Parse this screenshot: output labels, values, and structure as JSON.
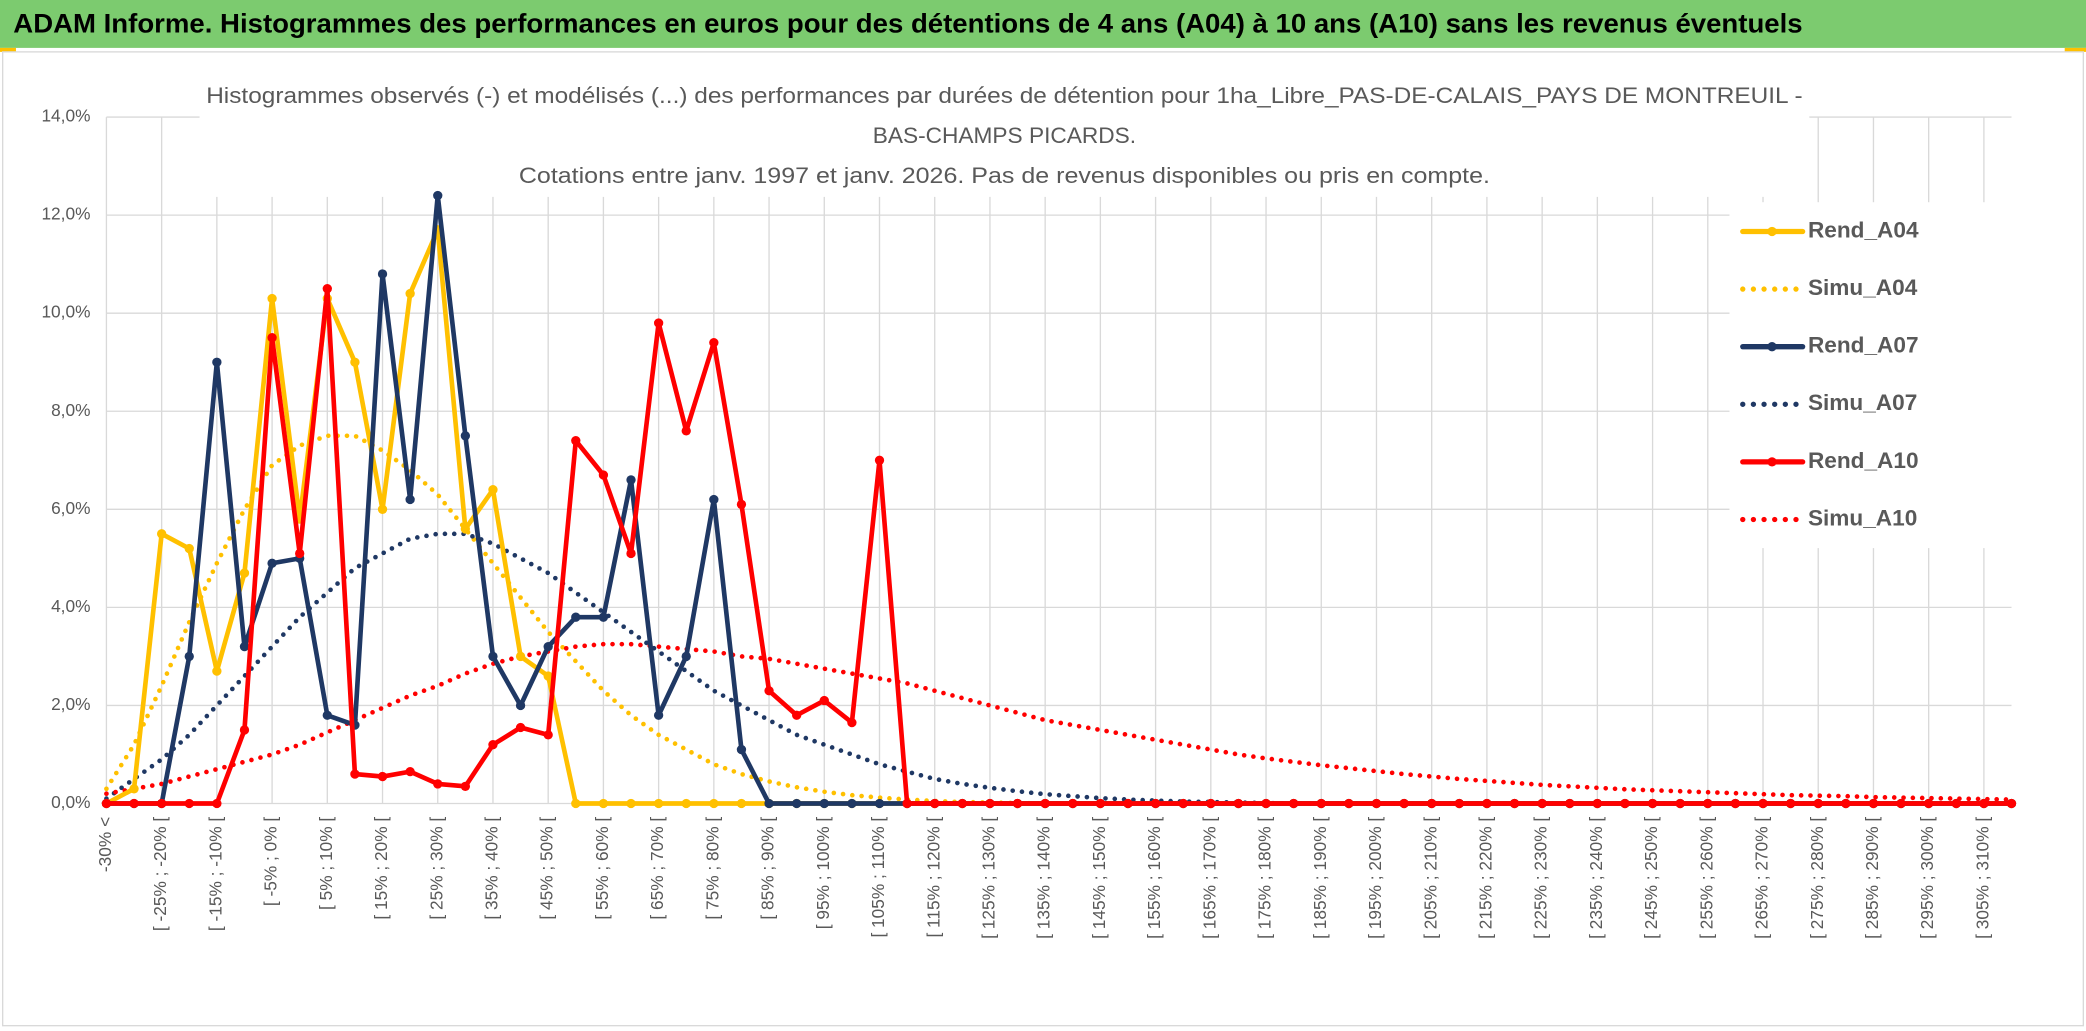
{
  "header": {
    "title": "ADAM Informe. Histogrammes des performances en euros pour des détentions de 4 ans (A04) à 10 ans (A10) sans les revenus éventuels"
  },
  "chart_data": {
    "type": "line",
    "title": [
      "Histogrammes observés (-) et modélisés (...) des performances par durées de détention pour 1ha_Libre_PAS-DE-CALAIS_PAYS DE MONTREUIL -",
      "BAS-CHAMPS PICARDS.",
      "Cotations entre janv. 1997 et janv. 2026. Pas de revenus disponibles ou pris en compte."
    ],
    "categories": [
      "-30% <",
      null,
      "[ -25% ; -20% [",
      null,
      "[ -15% ; -10% [",
      null,
      "[ -5% ; 0% [",
      null,
      "[ 5% ; 10% [",
      null,
      "[ 15% ; 20% [",
      null,
      "[ 25% ; 30% [",
      null,
      "[ 35% ; 40% [",
      null,
      "[ 45% ; 50% [",
      null,
      "[ 55% ; 60% [",
      null,
      "[ 65% ; 70% [",
      null,
      "[ 75% ; 80% [",
      null,
      "[ 85% ; 90% [",
      null,
      "[ 95% ; 100% [",
      null,
      "[ 105% ; 110% [",
      null,
      "[ 115% ; 120% [",
      null,
      "[ 125% ; 130% [",
      null,
      "[ 135% ; 140% [",
      null,
      "[ 145% ; 150% [",
      null,
      "[ 155% ; 160% [",
      null,
      "[ 165% ; 170% [",
      null,
      "[ 175% ; 180% [",
      null,
      "[ 185% ; 190% [",
      null,
      "[ 195% ; 200% [",
      null,
      "[ 205% ; 210% [",
      null,
      "[ 215% ; 220% [",
      null,
      "[ 225% ; 230% [",
      null,
      "[ 235% ; 240% [",
      null,
      "[ 245% ; 250% [",
      null,
      "[ 255% ; 260% [",
      null,
      "[ 265% ; 270% [",
      null,
      "[ 275% ; 280% [",
      null,
      "[ 285% ; 290% [",
      null,
      "[ 295% ; 300% [",
      null,
      "[ 305% ; 310% [",
      null
    ],
    "ylim": [
      0,
      14
    ],
    "yticks": [
      {
        "value": 0,
        "label": "0,0%"
      },
      {
        "value": 2,
        "label": "2,0%"
      },
      {
        "value": 4,
        "label": "4,0%"
      },
      {
        "value": 6,
        "label": "6,0%"
      },
      {
        "value": 8,
        "label": "8,0%"
      },
      {
        "value": 10,
        "label": "10,0%"
      },
      {
        "value": 12,
        "label": "12,0%"
      },
      {
        "value": 14,
        "label": "14,0%"
      }
    ],
    "grid": true,
    "legend": "upper right",
    "series": [
      {
        "name": "Rend_A04",
        "color": "#ffc000",
        "style": "solid",
        "markers": true,
        "values": [
          0,
          0.3,
          5.5,
          5.2,
          2.7,
          4.7,
          10.3,
          5.8,
          10.3,
          9.0,
          6.0,
          10.4,
          11.7,
          5.6,
          6.4,
          3.0,
          2.6,
          0,
          0,
          0,
          0,
          0,
          0,
          0,
          0,
          0,
          0,
          0,
          0,
          0,
          0,
          0,
          0,
          0,
          0,
          0,
          0,
          0,
          0,
          0,
          0,
          0,
          0,
          0,
          0,
          0,
          0,
          0,
          0,
          0,
          0,
          0,
          0,
          0,
          0,
          0,
          0,
          0,
          0,
          0,
          0,
          0,
          0,
          0,
          0,
          0,
          0,
          0,
          0,
          0
        ]
      },
      {
        "name": "Simu_A04",
        "color": "#ffc000",
        "style": "dotted",
        "markers": false,
        "values": [
          0.3,
          1.2,
          2.4,
          3.7,
          4.9,
          6.0,
          6.9,
          7.3,
          7.5,
          7.5,
          7.2,
          6.8,
          6.3,
          5.6,
          4.9,
          4.2,
          3.5,
          2.9,
          2.3,
          1.8,
          1.4,
          1.1,
          0.8,
          0.6,
          0.45,
          0.33,
          0.24,
          0.17,
          0.12,
          0.08,
          0.05,
          0.03,
          0.02,
          0.01,
          0,
          0,
          0,
          0,
          0,
          0,
          0,
          0,
          0,
          0,
          0,
          0,
          0,
          0,
          0,
          0,
          0,
          0,
          0,
          0,
          0,
          0,
          0,
          0,
          0,
          0,
          0,
          0,
          0,
          0,
          0,
          0,
          0,
          0,
          0,
          0
        ]
      },
      {
        "name": "Rend_A07",
        "color": "#1f3864",
        "style": "solid",
        "markers": true,
        "values": [
          0,
          0,
          0,
          3.0,
          9.0,
          3.2,
          4.9,
          5.0,
          1.8,
          1.6,
          10.8,
          6.2,
          12.4,
          7.5,
          3.0,
          2.0,
          3.2,
          3.8,
          3.8,
          6.6,
          1.8,
          3.0,
          6.2,
          1.1,
          0,
          0,
          0,
          0,
          0,
          0,
          0,
          0,
          0,
          0,
          0,
          0,
          0,
          0,
          0,
          0,
          0,
          0,
          0,
          0,
          0,
          0,
          0,
          0,
          0,
          0,
          0,
          0,
          0,
          0,
          0,
          0,
          0,
          0,
          0,
          0,
          0,
          0,
          0,
          0,
          0,
          0,
          0,
          0,
          0,
          0
        ]
      },
      {
        "name": "Simu_A07",
        "color": "#1f3864",
        "style": "dotted",
        "markers": false,
        "values": [
          0.1,
          0.5,
          0.9,
          1.4,
          2.0,
          2.6,
          3.2,
          3.8,
          4.3,
          4.8,
          5.1,
          5.4,
          5.5,
          5.5,
          5.3,
          5.0,
          4.7,
          4.3,
          3.9,
          3.5,
          3.1,
          2.7,
          2.3,
          2.0,
          1.7,
          1.4,
          1.2,
          1.0,
          0.8,
          0.65,
          0.5,
          0.4,
          0.32,
          0.25,
          0.19,
          0.15,
          0.11,
          0.08,
          0.06,
          0.04,
          0.03,
          0.02,
          0.01,
          0,
          0,
          0,
          0,
          0,
          0,
          0,
          0,
          0,
          0,
          0,
          0,
          0,
          0,
          0,
          0,
          0,
          0,
          0,
          0,
          0,
          0,
          0,
          0,
          0,
          0,
          0
        ]
      },
      {
        "name": "Rend_A10",
        "color": "#ff0000",
        "style": "solid",
        "markers": true,
        "values": [
          0,
          0,
          0,
          0,
          0,
          1.5,
          9.5,
          5.1,
          10.5,
          0.6,
          0.55,
          0.65,
          0.4,
          0.35,
          1.2,
          1.55,
          1.4,
          7.4,
          6.7,
          5.1,
          9.8,
          7.6,
          9.4,
          6.1,
          2.3,
          1.8,
          2.1,
          1.65,
          7.0,
          0,
          0,
          0,
          0,
          0,
          0,
          0,
          0,
          0,
          0,
          0,
          0,
          0,
          0,
          0,
          0,
          0,
          0,
          0,
          0,
          0,
          0,
          0,
          0,
          0,
          0,
          0,
          0,
          0,
          0,
          0,
          0,
          0,
          0,
          0,
          0,
          0,
          0,
          0,
          0,
          0
        ]
      },
      {
        "name": "Simu_A10",
        "color": "#ff0000",
        "style": "dotted",
        "markers": false,
        "values": [
          0.2,
          0.3,
          0.4,
          0.55,
          0.7,
          0.85,
          1.0,
          1.2,
          1.45,
          1.7,
          1.95,
          2.2,
          2.4,
          2.65,
          2.85,
          3.0,
          3.1,
          3.2,
          3.25,
          3.25,
          3.2,
          3.15,
          3.1,
          3.0,
          2.95,
          2.85,
          2.75,
          2.65,
          2.55,
          2.45,
          2.3,
          2.15,
          2.0,
          1.85,
          1.7,
          1.6,
          1.5,
          1.4,
          1.3,
          1.2,
          1.1,
          1.0,
          0.92,
          0.85,
          0.78,
          0.72,
          0.66,
          0.6,
          0.55,
          0.5,
          0.46,
          0.42,
          0.38,
          0.35,
          0.32,
          0.29,
          0.27,
          0.25,
          0.23,
          0.21,
          0.19,
          0.17,
          0.16,
          0.15,
          0.13,
          0.12,
          0.11,
          0.1,
          0.09,
          0.08
        ]
      }
    ]
  }
}
